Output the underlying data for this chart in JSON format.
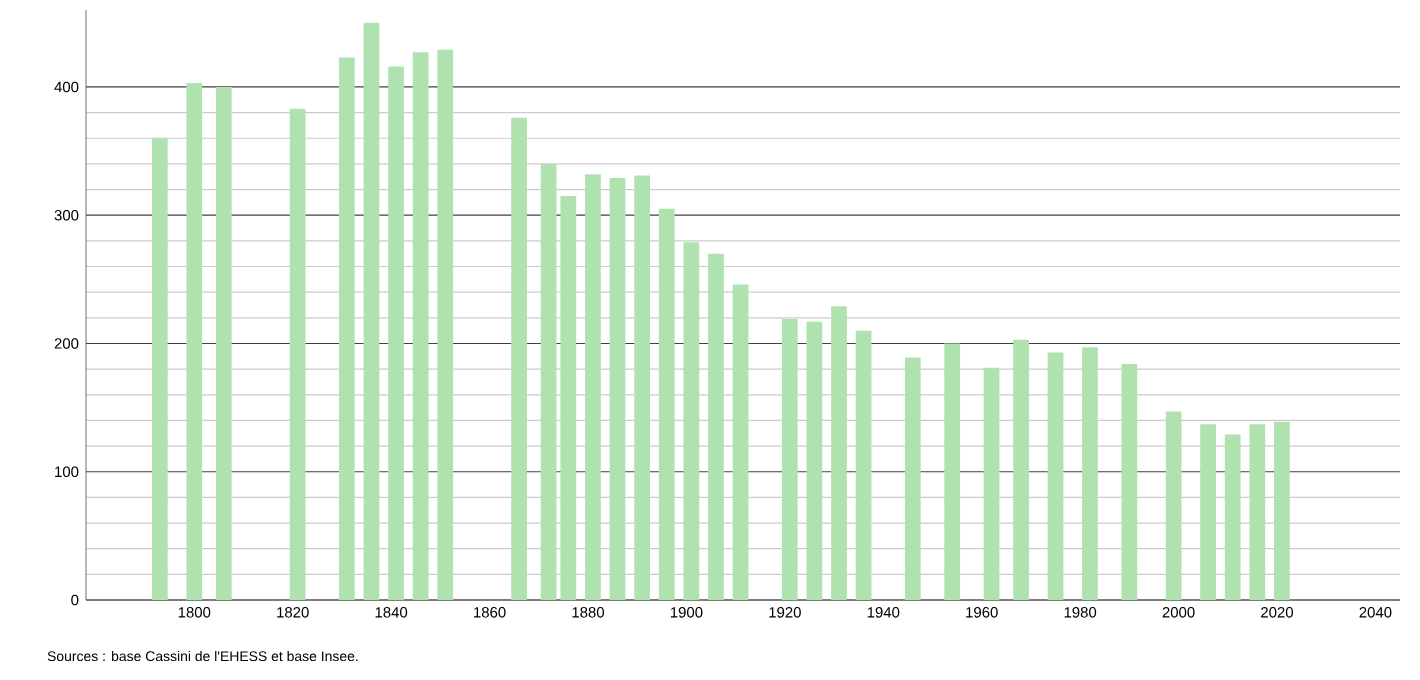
{
  "chart_data": {
    "type": "bar",
    "color": "#b0e2b0",
    "x": [
      1793,
      1800,
      1806,
      1821,
      1831,
      1836,
      1841,
      1846,
      1851,
      1866,
      1872,
      1876,
      1881,
      1886,
      1891,
      1896,
      1901,
      1906,
      1911,
      1921,
      1926,
      1931,
      1936,
      1946,
      1954,
      1962,
      1968,
      1975,
      1982,
      1990,
      1999,
      2006,
      2011,
      2016,
      2021
    ],
    "values": [
      360,
      403,
      400,
      383,
      423,
      450,
      416,
      427,
      429,
      376,
      340,
      315,
      332,
      329,
      331,
      305,
      279,
      270,
      246,
      219,
      217,
      229,
      210,
      189,
      200,
      181,
      203,
      193,
      197,
      184,
      147,
      137,
      129,
      137,
      139
    ],
    "xlim": [
      1778,
      2045
    ],
    "ylim": [
      0,
      460
    ],
    "xticks": [
      1800,
      1820,
      1840,
      1860,
      1880,
      1900,
      1920,
      1940,
      1960,
      1980,
      2000,
      2020,
      2040
    ],
    "yticks": [
      0,
      100,
      200,
      300,
      400
    ],
    "grid": "y",
    "annotations": [
      "Sources : base Cassini de l'EHESS et base Insee."
    ]
  }
}
